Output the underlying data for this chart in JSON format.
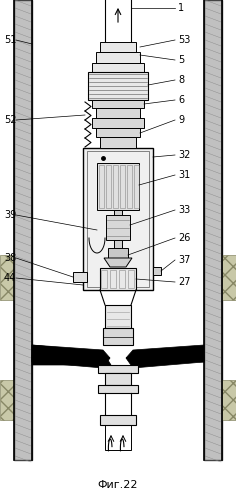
{
  "title": "Фиг.22",
  "background": "#ffffff",
  "fig_fontsize": 8,
  "label_fontsize": 7,
  "casing_lw": 1.5,
  "pipe_lw": 1.0
}
